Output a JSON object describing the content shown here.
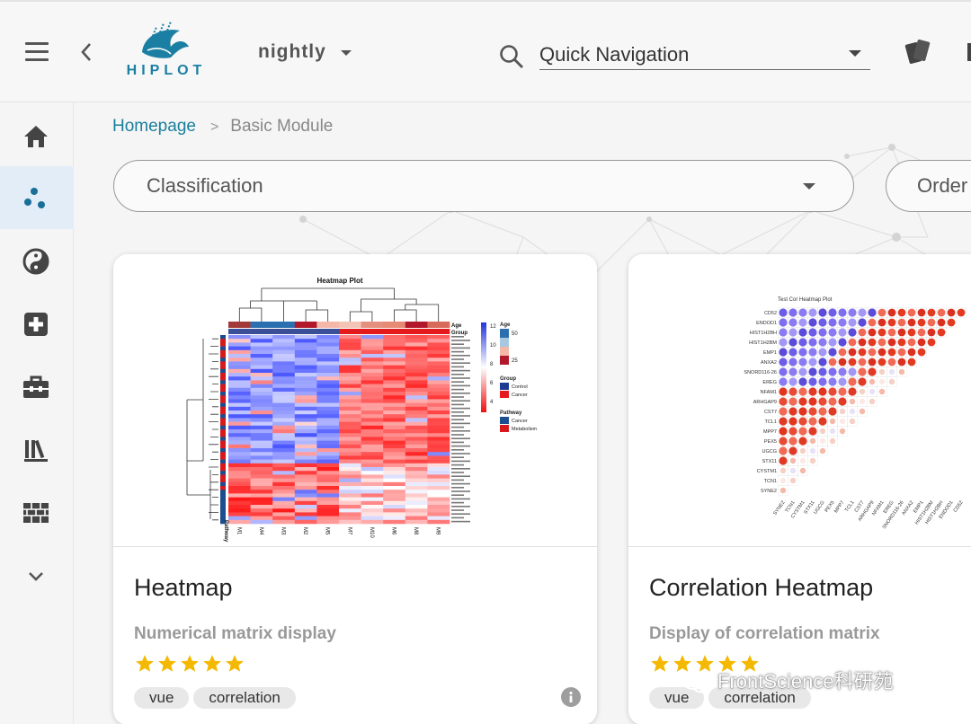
{
  "header": {
    "logo_text": "HIPLOT",
    "version": "nightly",
    "search": {
      "value": "Quick Navigation"
    }
  },
  "sidebar": {
    "items": [
      {
        "icon": "home-icon",
        "active": false
      },
      {
        "icon": "scatter-dots-icon",
        "active": true
      },
      {
        "icon": "yin-yang-icon",
        "active": false
      },
      {
        "icon": "medical-plus-icon",
        "active": false
      },
      {
        "icon": "toolbox-icon",
        "active": false
      },
      {
        "icon": "library-books-icon",
        "active": false
      },
      {
        "icon": "brick-wall-icon",
        "active": false
      },
      {
        "icon": "chevron-down-icon",
        "active": false
      }
    ]
  },
  "breadcrumb": {
    "home": "Homepage",
    "separator": ">",
    "current": "Basic Module"
  },
  "filters": {
    "classification": "Classification",
    "order": "Order"
  },
  "cards": [
    {
      "title": "Heatmap",
      "description": "Numerical matrix display",
      "rating": 5,
      "tags": [
        "vue",
        "correlation"
      ],
      "preview": {
        "title": "Heatmap Plot",
        "columns": [
          "M1",
          "M4",
          "M3",
          "M2",
          "M5",
          "M7",
          "M10",
          "M6",
          "M8",
          "M9"
        ],
        "row_label": "Pathway",
        "legend": {
          "scale_ticks": [
            "12",
            "10",
            "8",
            "6",
            "4"
          ],
          "age_title": "Age",
          "age_values": [
            "50",
            "25"
          ],
          "group_title": "Group",
          "group_values": [
            "Control",
            "Cancer"
          ],
          "pathway_title": "Pathway",
          "pathway_values": [
            "Cancer",
            "Metabolism"
          ],
          "annot_labels": [
            "Age",
            "Group"
          ]
        }
      }
    },
    {
      "title": "Correlation Heatmap",
      "description": "Display of correlation matrix",
      "rating": 5,
      "tags": [
        "vue",
        "correlation"
      ],
      "preview": {
        "title": "Test Cor Heatmap Plot",
        "genes": [
          "CD52",
          "ENDOD1",
          "HIST1H2BH",
          "HIST1H2BM",
          "EMP1",
          "ANXA2",
          "SNORD116-26",
          "EREG",
          "NFAM1",
          "ARHGAP9",
          "CST7",
          "TCL1",
          "MPP7",
          "PEX5",
          "UGCG",
          "STX11",
          "CYSTM1",
          "TCN1",
          "SYNE2"
        ]
      }
    }
  ],
  "watermark": "FrontScience科研苑",
  "colors": {
    "accent": "#1a7f9c",
    "star": "#f5b800",
    "sidebar_active": "#e3edf8"
  }
}
